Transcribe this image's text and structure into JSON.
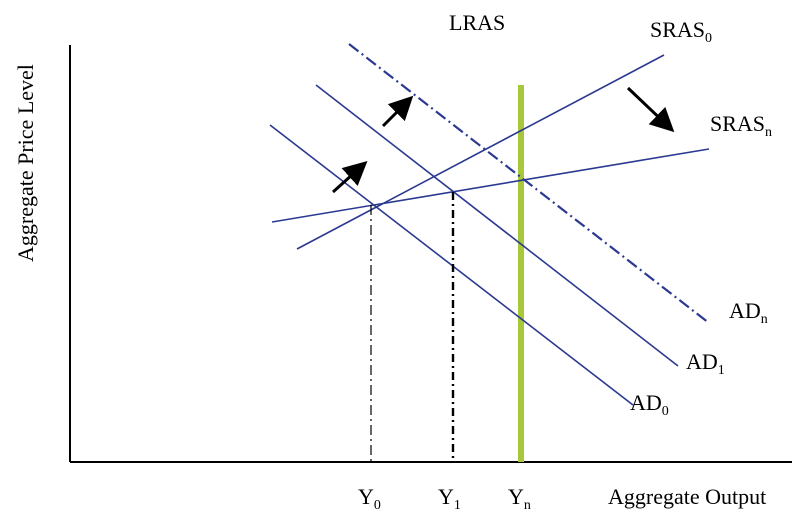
{
  "diagram": {
    "y_axis_label": "Aggregate Price Level",
    "x_axis_label": "Aggregate Output",
    "lras_label": "LRAS",
    "curves": {
      "sras0": {
        "main": "SRAS",
        "sub": "0"
      },
      "srasn": {
        "main": "SRAS",
        "sub": "n"
      },
      "ad0": {
        "main": "AD",
        "sub": "0"
      },
      "ad1": {
        "main": "AD",
        "sub": "1"
      },
      "adn": {
        "main": "AD",
        "sub": "n"
      }
    },
    "x_ticks": [
      {
        "main": "Y",
        "sub": "0"
      },
      {
        "main": "Y",
        "sub": "1"
      },
      {
        "main": "Y",
        "sub": "n"
      }
    ],
    "colors": {
      "curve": "#2b3990",
      "lras": "#a6c83a",
      "axis": "#000000",
      "arrow": "#000000"
    }
  }
}
